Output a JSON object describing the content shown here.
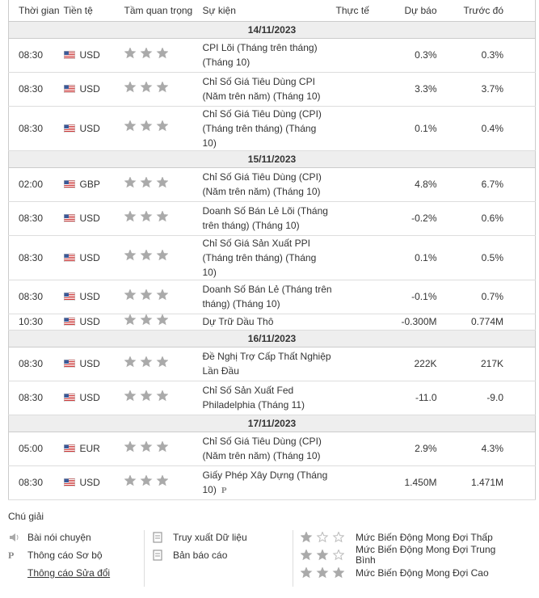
{
  "table": {
    "columns": [
      "Thời gian",
      "Tiền tệ",
      "Tầm quan trọng",
      "Sự kiện",
      "Thực tế",
      "Dự báo",
      "Trước đó"
    ],
    "groups": [
      {
        "date": "14/11/2023",
        "rows": [
          {
            "time": "08:30",
            "currency": "USD",
            "importance": 3,
            "event": "CPI Lõi (Tháng trên tháng) (Tháng 10)",
            "forecast": "0.3%",
            "previous": "0.3%"
          },
          {
            "time": "08:30",
            "currency": "USD",
            "importance": 3,
            "event": "Chỉ Số Giá Tiêu Dùng CPI (Năm trên năm) (Tháng 10)",
            "forecast": "3.3%",
            "previous": "3.7%"
          },
          {
            "time": "08:30",
            "currency": "USD",
            "importance": 3,
            "event": "Chỉ Số Giá Tiêu Dùng (CPI) (Tháng trên tháng) (Tháng 10)",
            "forecast": "0.1%",
            "previous": "0.4%"
          }
        ]
      },
      {
        "date": "15/11/2023",
        "rows": [
          {
            "time": "02:00",
            "currency": "GBP",
            "importance": 3,
            "event": "Chỉ Số Giá Tiêu Dùng (CPI) (Năm trên năm) (Tháng 10)",
            "forecast": "4.8%",
            "previous": "6.7%"
          },
          {
            "time": "08:30",
            "currency": "USD",
            "importance": 3,
            "event": "Doanh Số Bán Lẻ Lõi (Tháng trên tháng) (Tháng 10)",
            "forecast": "-0.2%",
            "previous": "0.6%"
          },
          {
            "time": "08:30",
            "currency": "USD",
            "importance": 3,
            "event": "Chỉ Số Giá Sản Xuất PPI (Tháng trên tháng) (Tháng 10)",
            "forecast": "0.1%",
            "previous": "0.5%"
          },
          {
            "time": "08:30",
            "currency": "USD",
            "importance": 3,
            "event": "Doanh Số Bán Lẻ (Tháng trên tháng) (Tháng 10)",
            "forecast": "-0.1%",
            "previous": "0.7%"
          },
          {
            "time": "10:30",
            "currency": "USD",
            "importance": 3,
            "event": "Dự Trữ Dầu Thô",
            "forecast": "-0.300M",
            "previous": "0.774M"
          }
        ]
      },
      {
        "date": "16/11/2023",
        "rows": [
          {
            "time": "08:30",
            "currency": "USD",
            "importance": 3,
            "event": "Đề Nghị Trợ Cấp Thất Nghiệp Lần Đầu",
            "forecast": "222K",
            "previous": "217K"
          },
          {
            "time": "08:30",
            "currency": "USD",
            "importance": 3,
            "event": "Chỉ Số Sản Xuất Fed Philadelphia (Tháng 11)",
            "forecast": "-11.0",
            "previous": "-9.0"
          }
        ]
      },
      {
        "date": "17/11/2023",
        "rows": [
          {
            "time": "05:00",
            "currency": "EUR",
            "importance": 3,
            "event": "Chỉ Số Giá Tiêu Dùng (CPI) (Năm trên năm) (Tháng 10)",
            "forecast": "2.9%",
            "previous": "4.3%"
          },
          {
            "time": "08:30",
            "currency": "USD",
            "importance": 3,
            "event": "Giấy Phép Xây Dựng (Tháng 10)",
            "badge": "P",
            "forecast": "1.450M",
            "previous": "1.471M"
          }
        ]
      }
    ]
  },
  "legend": {
    "title": "Chú giải",
    "notes": [
      {
        "label": "Bài nói chuyện"
      },
      {
        "icon": "P",
        "label": "Thông cáo Sơ bộ"
      },
      {
        "label": "Thông cáo Sửa đổi"
      }
    ],
    "sources": [
      "Truy xuất Dữ liệu",
      "Bản báo cáo"
    ],
    "volatility": [
      {
        "stars": 1,
        "label": "Mức Biến Động Mong Đợi Thấp"
      },
      {
        "stars": 2,
        "label": "Mức Biến Động Mong Đợi Trung Bình"
      },
      {
        "stars": 3,
        "label": "Mức Biến Động Mong Đợi Cao"
      }
    ]
  }
}
